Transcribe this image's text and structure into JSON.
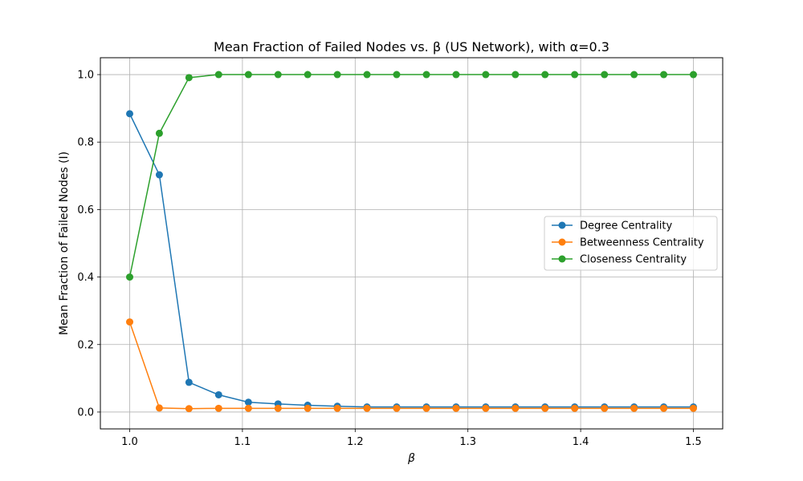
{
  "chart_data": {
    "type": "line",
    "title": "Mean Fraction of Failed Nodes vs. β (US Network), with α=0.3",
    "xlabel": "β",
    "ylabel": "Mean Fraction of Failed Nodes (I)",
    "xlim": [
      0.974,
      1.526
    ],
    "ylim": [
      -0.05,
      1.05
    ],
    "xticks": [
      "1.0",
      "1.1",
      "1.2",
      "1.3",
      "1.4",
      "1.5"
    ],
    "yticks": [
      "0.0",
      "0.2",
      "0.4",
      "0.6",
      "0.8",
      "1.0"
    ],
    "grid": true,
    "legend_position": "center-right",
    "x": [
      1.0,
      1.0263,
      1.0526,
      1.0789,
      1.1053,
      1.1316,
      1.1579,
      1.1842,
      1.2105,
      1.2368,
      1.2632,
      1.2895,
      1.3158,
      1.3421,
      1.3684,
      1.3947,
      1.4211,
      1.4474,
      1.4737,
      1.5
    ],
    "series": [
      {
        "name": "Degree Centrality",
        "color": "#1f77b4",
        "values": [
          0.884,
          0.703,
          0.088,
          0.051,
          0.029,
          0.024,
          0.02,
          0.017,
          0.015,
          0.015,
          0.015,
          0.015,
          0.015,
          0.015,
          0.015,
          0.015,
          0.015,
          0.015,
          0.015,
          0.015
        ]
      },
      {
        "name": "Betweenness Centrality",
        "color": "#ff7f0e",
        "values": [
          0.267,
          0.012,
          0.01,
          0.011,
          0.011,
          0.011,
          0.011,
          0.011,
          0.011,
          0.011,
          0.011,
          0.011,
          0.011,
          0.011,
          0.011,
          0.011,
          0.011,
          0.011,
          0.011,
          0.011
        ]
      },
      {
        "name": "Closeness Centrality",
        "color": "#2ca02c",
        "values": [
          0.4,
          0.826,
          0.991,
          1.0,
          1.0,
          1.0,
          1.0,
          1.0,
          1.0,
          1.0,
          1.0,
          1.0,
          1.0,
          1.0,
          1.0,
          1.0,
          1.0,
          1.0,
          1.0,
          1.0
        ]
      }
    ]
  }
}
